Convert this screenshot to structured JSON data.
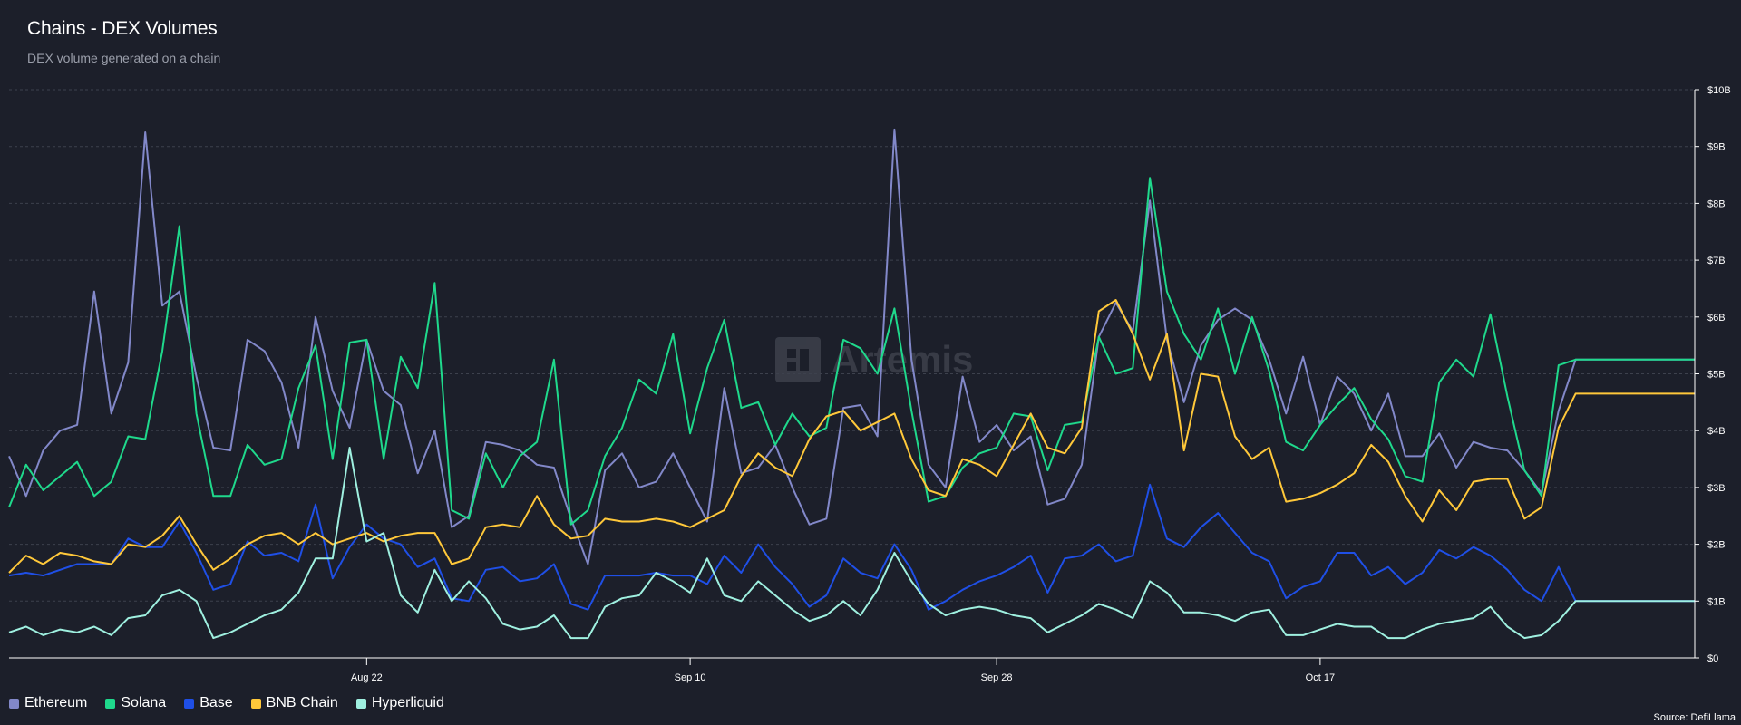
{
  "header": {
    "title": "Chains - DEX Volumes",
    "subtitle": "DEX volume generated on a chain"
  },
  "watermark": {
    "text": "Artemis",
    "icon": "artemis-logo-icon"
  },
  "source": "Source: DefiLlama",
  "colors": {
    "background": "#1c1f2a",
    "grid": "#3d414d",
    "axis": "#ffffff",
    "Ethereum": "#8288c9",
    "Solana": "#1fd98c",
    "Base": "#1f4fe6",
    "BNB Chain": "#ffc83a",
    "Hyperliquid": "#9ff0e0"
  },
  "chart_data": {
    "type": "line",
    "x_start": "2025-08-01",
    "x_end": "2025-11-08",
    "x": [
      "2025-08-01",
      "2025-08-02",
      "2025-08-03",
      "2025-08-04",
      "2025-08-05",
      "2025-08-06",
      "2025-08-07",
      "2025-08-08",
      "2025-08-09",
      "2025-08-10",
      "2025-08-11",
      "2025-08-12",
      "2025-08-13",
      "2025-08-14",
      "2025-08-15",
      "2025-08-16",
      "2025-08-17",
      "2025-08-18",
      "2025-08-19",
      "2025-08-20",
      "2025-08-21",
      "2025-08-22",
      "2025-08-23",
      "2025-08-24",
      "2025-08-25",
      "2025-08-26",
      "2025-08-27",
      "2025-08-28",
      "2025-08-29",
      "2025-08-30",
      "2025-08-31",
      "2025-09-01",
      "2025-09-02",
      "2025-09-03",
      "2025-09-04",
      "2025-09-05",
      "2025-09-06",
      "2025-09-07",
      "2025-09-08",
      "2025-09-09",
      "2025-09-10",
      "2025-09-11",
      "2025-09-12",
      "2025-09-13",
      "2025-09-14",
      "2025-09-15",
      "2025-09-16",
      "2025-09-17",
      "2025-09-18",
      "2025-09-19",
      "2025-09-20",
      "2025-09-21",
      "2025-09-22",
      "2025-09-23",
      "2025-09-24",
      "2025-09-25",
      "2025-09-26",
      "2025-09-27",
      "2025-09-28",
      "2025-09-29",
      "2025-09-30",
      "2025-10-01",
      "2025-10-02",
      "2025-10-03",
      "2025-10-04",
      "2025-10-05",
      "2025-10-06",
      "2025-10-07",
      "2025-10-08",
      "2025-10-09",
      "2025-10-10",
      "2025-10-11",
      "2025-10-12",
      "2025-10-13",
      "2025-10-14",
      "2025-10-15",
      "2025-10-16",
      "2025-10-17",
      "2025-10-18",
      "2025-10-19",
      "2025-10-20",
      "2025-10-21",
      "2025-10-22",
      "2025-10-23",
      "2025-10-24",
      "2025-10-25",
      "2025-10-26",
      "2025-10-27",
      "2025-10-28",
      "2025-10-29",
      "2025-10-30",
      "2025-10-31",
      "2025-11-01",
      "2025-11-02",
      "2025-11-03",
      "2025-11-04",
      "2025-11-05",
      "2025-11-06",
      "2025-11-07",
      "2025-11-08"
    ],
    "x_ticks": [
      {
        "date": "2025-08-22",
        "label": "Aug 22"
      },
      {
        "date": "2025-09-10",
        "label": "Sep 10"
      },
      {
        "date": "2025-09-28",
        "label": "Sep 28"
      },
      {
        "date": "2025-10-17",
        "label": "Oct 17"
      }
    ],
    "y_ticks": [
      "$0",
      "$1B",
      "$2B",
      "$3B",
      "$4B",
      "$5B",
      "$6B",
      "$7B",
      "$8B",
      "$9B",
      "$10B"
    ],
    "ylim": [
      0,
      10
    ],
    "y_unit": "B USD",
    "grid": true,
    "legend_position": "bottom-left",
    "series": [
      {
        "name": "Ethereum",
        "values": [
          3.55,
          2.85,
          3.65,
          4.0,
          4.1,
          6.45,
          4.3,
          5.2,
          9.25,
          6.2,
          6.45,
          4.95,
          3.7,
          3.65,
          5.6,
          5.4,
          4.85,
          3.7,
          6.0,
          4.7,
          4.05,
          5.6,
          4.7,
          4.45,
          3.25,
          4.0,
          2.3,
          2.5,
          3.8,
          3.75,
          3.65,
          3.4,
          3.35,
          2.45,
          1.65,
          3.3,
          3.6,
          3.0,
          3.1,
          3.6,
          3.0,
          2.4,
          4.75,
          3.25,
          3.35,
          3.75,
          3.0,
          2.35,
          2.45,
          4.4,
          4.45,
          3.9,
          9.3,
          5.25,
          3.4,
          3.0,
          4.95,
          3.8,
          4.1,
          3.65,
          3.9,
          2.7,
          2.8,
          3.4,
          5.65,
          6.25,
          5.75,
          8.05,
          5.6,
          4.5,
          5.5,
          5.95,
          6.15,
          5.95,
          5.25,
          4.3,
          5.3,
          4.1,
          4.95,
          4.65,
          4.0,
          4.65,
          3.55,
          3.55,
          3.95,
          3.35,
          3.8,
          3.7,
          3.65,
          3.3,
          2.9,
          4.35,
          5.25,
          5.25,
          5.25,
          5.25,
          5.25,
          5.25,
          5.25,
          5.25
        ]
      },
      {
        "name": "Solana",
        "values": [
          2.65,
          3.4,
          2.95,
          3.2,
          3.45,
          2.85,
          3.1,
          3.9,
          3.85,
          5.4,
          7.6,
          4.3,
          2.85,
          2.85,
          3.75,
          3.4,
          3.5,
          4.75,
          5.5,
          3.5,
          5.55,
          5.6,
          3.5,
          5.3,
          4.75,
          6.6,
          2.6,
          2.45,
          3.6,
          3.0,
          3.55,
          3.8,
          5.25,
          2.35,
          2.6,
          3.55,
          4.05,
          4.9,
          4.65,
          5.7,
          3.95,
          5.1,
          5.95,
          4.4,
          4.5,
          3.75,
          4.3,
          3.9,
          4.05,
          5.6,
          5.45,
          5.0,
          6.15,
          4.35,
          2.75,
          2.85,
          3.35,
          3.6,
          3.7,
          4.3,
          4.25,
          3.3,
          4.1,
          4.15,
          5.65,
          5.0,
          5.1,
          8.45,
          6.45,
          5.7,
          5.25,
          6.15,
          5.0,
          6.0,
          5.05,
          3.8,
          3.65,
          4.1,
          4.45,
          4.75,
          4.2,
          3.85,
          3.2,
          3.1,
          4.85,
          5.25,
          4.95,
          6.05,
          4.6,
          3.3,
          2.85,
          5.15,
          5.25,
          5.25,
          5.25,
          5.25,
          5.25,
          5.25,
          5.25,
          5.25
        ]
      },
      {
        "name": "Base",
        "values": [
          1.45,
          1.5,
          1.45,
          1.55,
          1.65,
          1.65,
          1.65,
          2.1,
          1.95,
          1.95,
          2.4,
          1.85,
          1.2,
          1.3,
          2.05,
          1.8,
          1.85,
          1.7,
          2.7,
          1.4,
          1.95,
          2.35,
          2.1,
          2.0,
          1.6,
          1.75,
          1.05,
          1.0,
          1.55,
          1.6,
          1.35,
          1.4,
          1.65,
          0.95,
          0.85,
          1.45,
          1.45,
          1.45,
          1.5,
          1.45,
          1.45,
          1.3,
          1.8,
          1.5,
          2.0,
          1.6,
          1.3,
          0.9,
          1.1,
          1.75,
          1.5,
          1.4,
          2.0,
          1.55,
          0.85,
          1.0,
          1.2,
          1.35,
          1.45,
          1.6,
          1.8,
          1.15,
          1.75,
          1.8,
          2.0,
          1.7,
          1.8,
          3.05,
          2.1,
          1.95,
          2.3,
          2.55,
          2.2,
          1.85,
          1.7,
          1.05,
          1.25,
          1.35,
          1.85,
          1.85,
          1.45,
          1.6,
          1.3,
          1.5,
          1.9,
          1.75,
          1.95,
          1.8,
          1.55,
          1.2,
          1.0,
          1.6,
          1.0,
          1.0,
          1.0,
          1.0,
          1.0,
          1.0,
          1.0,
          1.0
        ]
      },
      {
        "name": "BNB Chain",
        "values": [
          1.5,
          1.8,
          1.65,
          1.85,
          1.8,
          1.7,
          1.65,
          2.0,
          1.95,
          2.15,
          2.5,
          2.0,
          1.55,
          1.75,
          2.0,
          2.15,
          2.2,
          2.0,
          2.2,
          2.0,
          2.1,
          2.2,
          2.05,
          2.15,
          2.2,
          2.2,
          1.65,
          1.75,
          2.3,
          2.35,
          2.3,
          2.85,
          2.35,
          2.1,
          2.15,
          2.45,
          2.4,
          2.4,
          2.45,
          2.4,
          2.3,
          2.45,
          2.6,
          3.2,
          3.6,
          3.35,
          3.2,
          3.85,
          4.25,
          4.35,
          4.0,
          4.15,
          4.3,
          3.5,
          2.95,
          2.85,
          3.5,
          3.4,
          3.2,
          3.75,
          4.3,
          3.7,
          3.6,
          4.05,
          6.1,
          6.3,
          5.7,
          4.9,
          5.7,
          3.65,
          5.0,
          4.95,
          3.9,
          3.5,
          3.7,
          2.75,
          2.8,
          2.9,
          3.05,
          3.25,
          3.75,
          3.45,
          2.85,
          2.4,
          2.95,
          2.6,
          3.1,
          3.15,
          3.15,
          2.45,
          2.65,
          4.05,
          4.65,
          4.65,
          4.65,
          4.65,
          4.65,
          4.65,
          4.65,
          4.65
        ]
      },
      {
        "name": "Hyperliquid",
        "values": [
          0.45,
          0.55,
          0.4,
          0.5,
          0.45,
          0.55,
          0.4,
          0.7,
          0.75,
          1.1,
          1.2,
          1.0,
          0.35,
          0.45,
          0.6,
          0.75,
          0.85,
          1.15,
          1.75,
          1.75,
          3.7,
          2.05,
          2.2,
          1.1,
          0.8,
          1.55,
          1.0,
          1.35,
          1.05,
          0.6,
          0.5,
          0.55,
          0.75,
          0.35,
          0.35,
          0.9,
          1.05,
          1.1,
          1.5,
          1.35,
          1.15,
          1.75,
          1.1,
          1.0,
          1.35,
          1.1,
          0.85,
          0.65,
          0.75,
          1.0,
          0.75,
          1.2,
          1.85,
          1.35,
          0.95,
          0.75,
          0.85,
          0.9,
          0.85,
          0.75,
          0.7,
          0.45,
          0.6,
          0.75,
          0.95,
          0.85,
          0.7,
          1.35,
          1.15,
          0.8,
          0.8,
          0.75,
          0.65,
          0.8,
          0.85,
          0.4,
          0.4,
          0.5,
          0.6,
          0.55,
          0.55,
          0.35,
          0.35,
          0.5,
          0.6,
          0.65,
          0.7,
          0.9,
          0.55,
          0.35,
          0.4,
          0.65,
          1.0,
          1.0,
          1.0,
          1.0,
          1.0,
          1.0,
          1.0,
          1.0
        ]
      }
    ]
  }
}
